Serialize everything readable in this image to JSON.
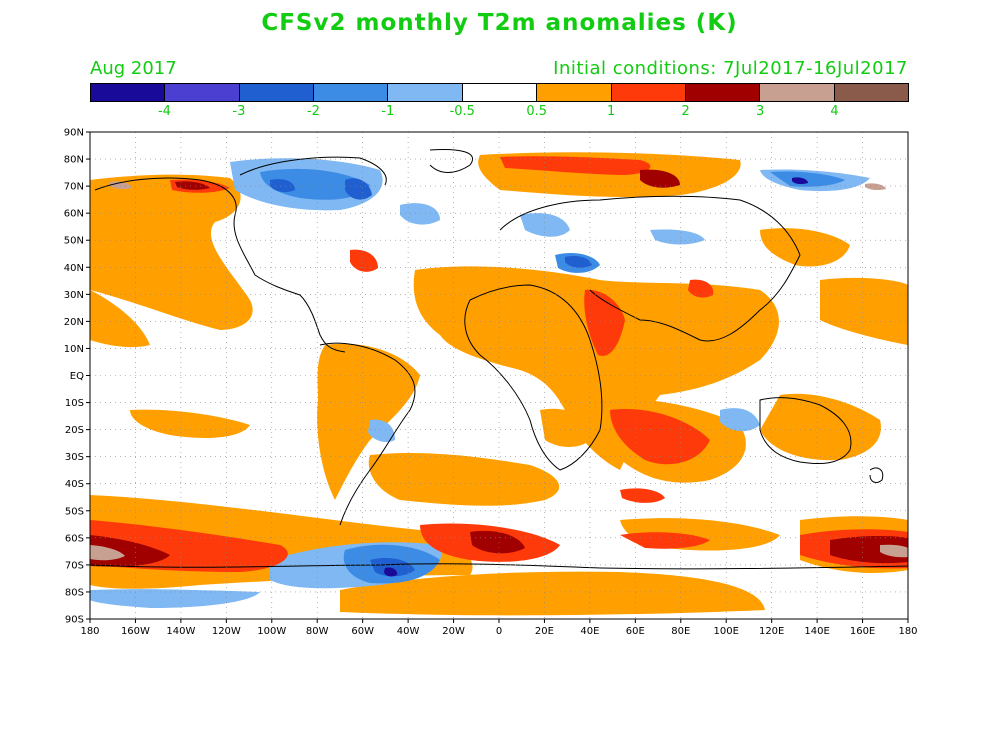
{
  "title": "CFSv2 monthly T2m anomalies (K)",
  "subtitle_left": "Aug 2017",
  "subtitle_right": "Initial conditions: 7Jul2017-16Jul2017",
  "colorbar": {
    "colors": [
      "#1a0a9a",
      "#4a3fd0",
      "#1f5fd0",
      "#3c8ce6",
      "#7fb8f2",
      "#ffffff",
      "#ffa000",
      "#ff3a0a",
      "#a00000",
      "#c8a092",
      "#8a5a4a"
    ],
    "labels": [
      "-4",
      "-3",
      "-2",
      "-1",
      "-0.5",
      "0.5",
      "1",
      "2",
      "3",
      "4"
    ]
  },
  "lat_labels": [
    "90N",
    "80N",
    "70N",
    "60N",
    "50N",
    "40N",
    "30N",
    "20N",
    "10N",
    "EQ",
    "10S",
    "20S",
    "30S",
    "40S",
    "50S",
    "60S",
    "70S",
    "80S",
    "90S"
  ],
  "lon_labels": [
    "180",
    "160W",
    "140W",
    "120W",
    "100W",
    "80W",
    "60W",
    "40W",
    "20W",
    "0",
    "20E",
    "40E",
    "60E",
    "80E",
    "100E",
    "120E",
    "140E",
    "160E",
    "180"
  ]
}
